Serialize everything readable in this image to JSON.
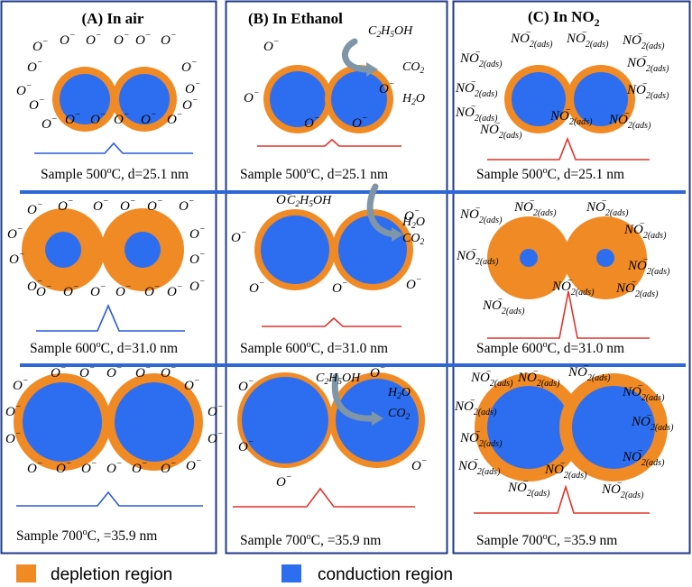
{
  "colors": {
    "depletion": "#f08a25",
    "conduction": "#2d6ef0",
    "frame": "#1f3a8a",
    "divider": "#2f68d6",
    "air_line": "#2a5bd7",
    "gas_line": "#e0342a",
    "arrow": "#7f96a8"
  },
  "columns": [
    {
      "title": "(A) In air"
    },
    {
      "title": "(B) In Ethanol"
    },
    {
      "title": "(C) In NO2",
      "title_main": "(C) In NO",
      "title_sub": "2"
    }
  ],
  "captions": {
    "row1": {
      "pre": "Sample 500",
      "sup": "o",
      "post": "C, d=25.1 nm"
    },
    "row2": {
      "pre": "Sample 600",
      "sup": "o",
      "post": "C, d=31.0 nm"
    },
    "row3": {
      "pre": "Sample 700",
      "sup": "o",
      "post": "C, =35.9 nm"
    }
  },
  "species": {
    "oxygen": {
      "base": "O",
      "sup": "−"
    },
    "no2": {
      "base": "NO",
      "sub": "2(ads)",
      "sup": "−"
    },
    "ethanol": {
      "c": "C",
      "c_n": "2",
      "h": "H",
      "h_n": "5",
      "tail": "OH"
    },
    "co2": {
      "base": "CO",
      "sub": "2"
    },
    "h2o": {
      "h": "H",
      "h_n": "2",
      "tail": "O"
    }
  },
  "legend": [
    {
      "label": "depletion region",
      "color": "#f08a25"
    },
    {
      "label": "conduction region",
      "color": "#2d6ef0"
    }
  ]
}
